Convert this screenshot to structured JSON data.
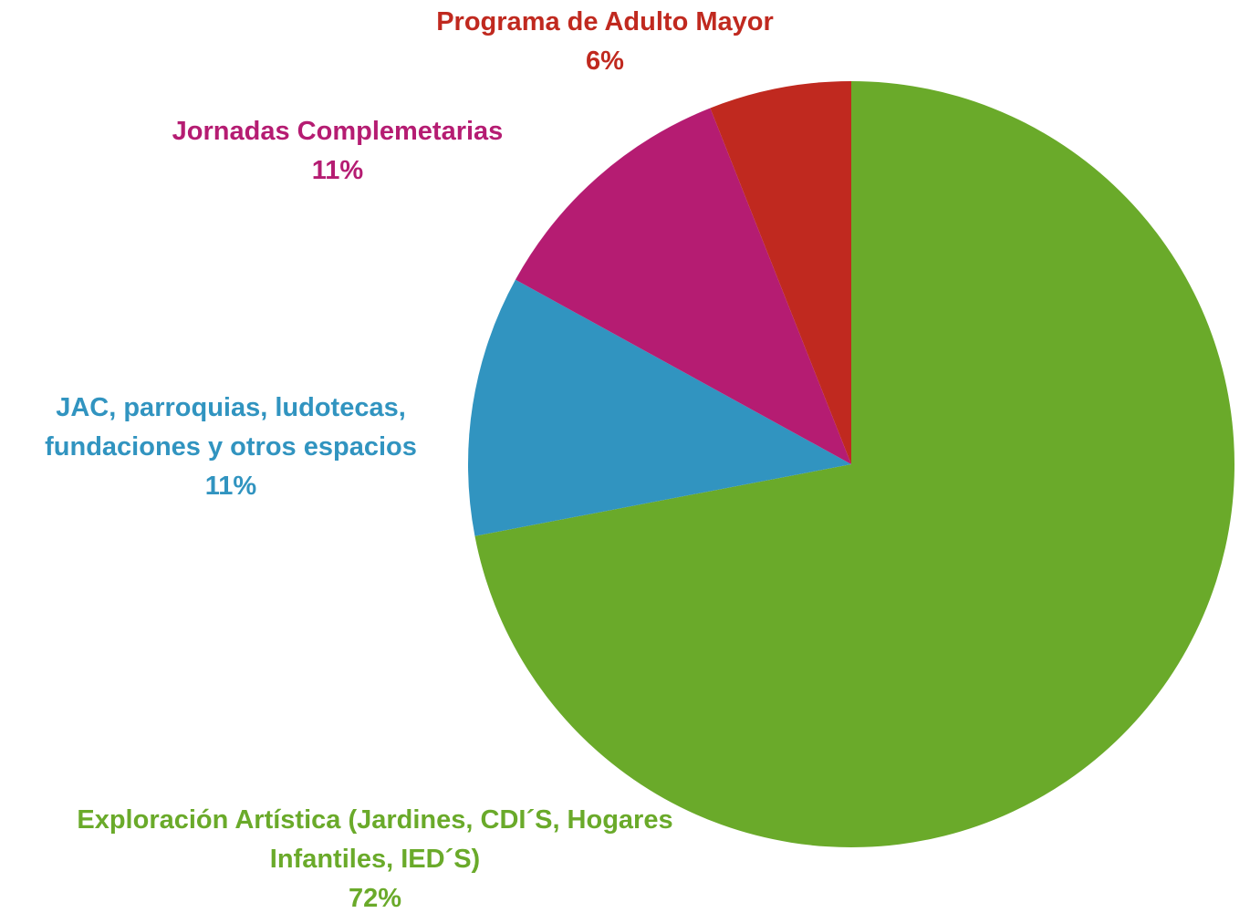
{
  "chart_data": {
    "type": "pie",
    "categories": [
      "Exploración Artística (Jardines, CDI´S, Hogares Infantiles, IED´S)",
      "JAC, parroquias, ludotecas, fundaciones y otros espacios",
      "Jornadas Complemetarias",
      "Programa de Adulto Mayor"
    ],
    "values": [
      72,
      11,
      11,
      6
    ],
    "value_labels": [
      "72%",
      "11%",
      "11%",
      "6%"
    ],
    "colors": [
      "#6aaa2a",
      "#3194c0",
      "#b51c72",
      "#c0291f"
    ]
  }
}
